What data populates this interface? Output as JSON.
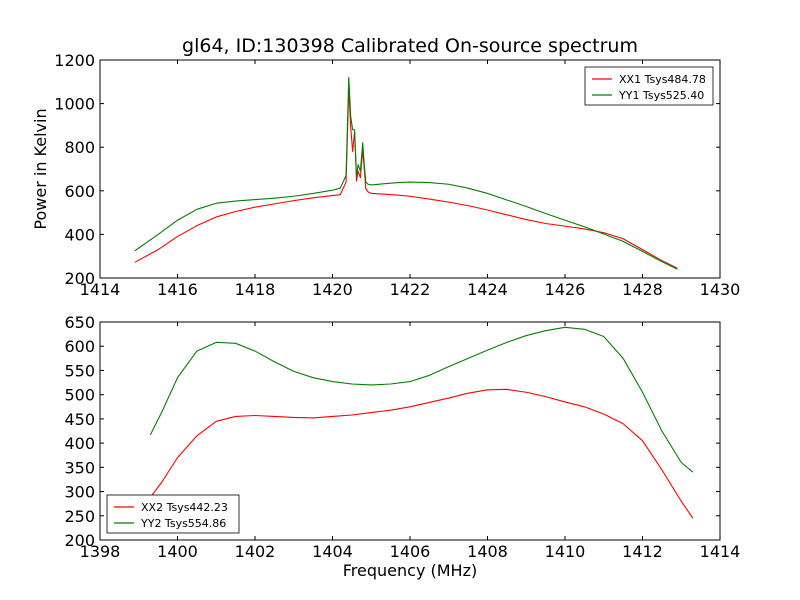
{
  "chart_data": [
    {
      "type": "line",
      "title": "gl64, ID:130398 Calibrated On-source spectrum",
      "xlabel": "",
      "ylabel": "Power in Kelvin",
      "xlim": [
        1414,
        1430
      ],
      "ylim": [
        200,
        1200
      ],
      "xticks": [
        1414,
        1416,
        1418,
        1420,
        1422,
        1424,
        1426,
        1428,
        1430
      ],
      "yticks": [
        200,
        400,
        600,
        800,
        1000,
        1200
      ],
      "legend_position": "top-right",
      "series": [
        {
          "name": "XX1 Tsys484.78",
          "color": "#ff0000",
          "x": [
            1414.9,
            1415.5,
            1416.0,
            1416.5,
            1417.0,
            1417.5,
            1418.0,
            1418.5,
            1419.0,
            1419.5,
            1420.0,
            1420.2,
            1420.35,
            1420.42,
            1420.47,
            1420.52,
            1420.57,
            1420.62,
            1420.66,
            1420.72,
            1420.78,
            1420.82,
            1420.86,
            1420.92,
            1421.0,
            1421.3,
            1421.7,
            1422.0,
            1422.5,
            1423.0,
            1423.5,
            1424.0,
            1424.5,
            1425.0,
            1425.5,
            1426.0,
            1426.5,
            1427.0,
            1427.5,
            1428.0,
            1428.5,
            1428.9
          ],
          "values": [
            272,
            330,
            390,
            440,
            480,
            505,
            525,
            540,
            555,
            568,
            578,
            582,
            640,
            1070,
            890,
            780,
            870,
            645,
            690,
            660,
            790,
            700,
            610,
            595,
            588,
            585,
            580,
            575,
            562,
            548,
            532,
            512,
            490,
            468,
            450,
            438,
            425,
            408,
            380,
            330,
            280,
            245
          ]
        },
        {
          "name": "YY1 Tsys525.40",
          "color": "#008000",
          "x": [
            1414.9,
            1415.5,
            1416.0,
            1416.5,
            1417.0,
            1417.5,
            1418.0,
            1418.5,
            1419.0,
            1419.5,
            1420.0,
            1420.2,
            1420.35,
            1420.42,
            1420.47,
            1420.52,
            1420.57,
            1420.62,
            1420.66,
            1420.72,
            1420.78,
            1420.82,
            1420.86,
            1420.92,
            1421.0,
            1421.3,
            1421.7,
            1422.0,
            1422.5,
            1423.0,
            1423.5,
            1424.0,
            1424.5,
            1425.0,
            1425.5,
            1426.0,
            1426.5,
            1427.0,
            1427.5,
            1428.0,
            1428.5,
            1428.9
          ],
          "values": [
            325,
            400,
            465,
            515,
            543,
            553,
            560,
            566,
            575,
            588,
            603,
            612,
            670,
            1120,
            940,
            880,
            880,
            665,
            720,
            690,
            820,
            720,
            640,
            630,
            627,
            632,
            638,
            640,
            638,
            630,
            612,
            588,
            558,
            528,
            496,
            465,
            435,
            402,
            368,
            322,
            275,
            240
          ]
        }
      ]
    },
    {
      "type": "line",
      "title": "",
      "xlabel": "Frequency (MHz)",
      "ylabel": "",
      "xlim": [
        1398,
        1414
      ],
      "ylim": [
        200,
        650
      ],
      "xticks": [
        1398,
        1400,
        1402,
        1404,
        1406,
        1408,
        1410,
        1412,
        1414
      ],
      "yticks": [
        200,
        250,
        300,
        350,
        400,
        450,
        500,
        550,
        600,
        650
      ],
      "legend_position": "bottom-left",
      "series": [
        {
          "name": "XX2 Tsys442.23",
          "color": "#ff0000",
          "x": [
            1399.3,
            1399.6,
            1400.0,
            1400.5,
            1401.0,
            1401.5,
            1402.0,
            1402.5,
            1403.0,
            1403.5,
            1404.0,
            1404.5,
            1405.0,
            1405.5,
            1406.0,
            1406.5,
            1407.0,
            1407.5,
            1408.0,
            1408.5,
            1409.0,
            1409.5,
            1410.0,
            1410.5,
            1411.0,
            1411.5,
            1412.0,
            1412.5,
            1413.0,
            1413.3
          ],
          "values": [
            288,
            320,
            370,
            415,
            445,
            455,
            457,
            455,
            453,
            452,
            455,
            458,
            463,
            468,
            475,
            484,
            493,
            503,
            510,
            511,
            505,
            496,
            485,
            475,
            460,
            440,
            405,
            345,
            280,
            245
          ]
        },
        {
          "name": "YY2 Tsys554.86",
          "color": "#008000",
          "x": [
            1399.3,
            1399.6,
            1400.0,
            1400.5,
            1401.0,
            1401.5,
            1402.0,
            1402.5,
            1403.0,
            1403.5,
            1404.0,
            1404.5,
            1405.0,
            1405.5,
            1406.0,
            1406.5,
            1407.0,
            1407.5,
            1408.0,
            1408.5,
            1409.0,
            1409.5,
            1410.0,
            1410.5,
            1411.0,
            1411.5,
            1412.0,
            1412.5,
            1413.0,
            1413.3
          ],
          "values": [
            417,
            465,
            535,
            590,
            608,
            606,
            590,
            568,
            548,
            535,
            527,
            522,
            520,
            522,
            527,
            540,
            558,
            575,
            592,
            608,
            622,
            632,
            639,
            635,
            620,
            575,
            505,
            425,
            360,
            340
          ]
        }
      ]
    }
  ]
}
